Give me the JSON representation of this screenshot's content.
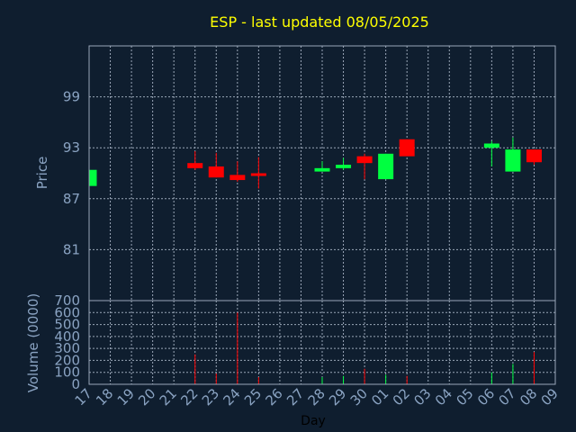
{
  "chart_data": {
    "type": "candlestick",
    "title": "ESP - last updated 08/05/2025",
    "xlabel": "Day",
    "price_panel": {
      "ylabel": "Price",
      "yticks": [
        "81",
        "87",
        "93",
        "99"
      ],
      "ylim": [
        75,
        105
      ]
    },
    "volume_panel": {
      "ylabel": "Volume (0000)",
      "yticks": [
        "0",
        "100",
        "200",
        "300",
        "400",
        "500",
        "600",
        "700"
      ],
      "ylim": [
        0,
        700
      ]
    },
    "days": [
      "17",
      "18",
      "19",
      "20",
      "21",
      "22",
      "23",
      "24",
      "25",
      "26",
      "27",
      "28",
      "29",
      "30",
      "01",
      "02",
      "03",
      "04",
      "05",
      "06",
      "07",
      "08",
      "09"
    ],
    "candles": [
      {
        "day": "17",
        "open": 88.5,
        "close": 90.4,
        "high": 90.4,
        "low": 88.5,
        "volume": 0
      },
      {
        "day": "22",
        "open": 91.2,
        "close": 90.6,
        "high": 92.6,
        "low": 90.4,
        "volume": 250
      },
      {
        "day": "23",
        "open": 90.8,
        "close": 89.5,
        "high": 92.4,
        "low": 89.5,
        "volume": 90
      },
      {
        "day": "24",
        "open": 89.8,
        "close": 89.2,
        "high": 91.4,
        "low": 89.0,
        "volume": 600
      },
      {
        "day": "25",
        "open": 90.0,
        "close": 89.8,
        "high": 91.9,
        "low": 88.2,
        "volume": 60
      },
      {
        "day": "28",
        "open": 90.2,
        "close": 90.6,
        "high": 91.4,
        "low": 90.2,
        "volume": 60
      },
      {
        "day": "29",
        "open": 90.6,
        "close": 91.0,
        "high": 91.8,
        "low": 90.4,
        "volume": 70
      },
      {
        "day": "30",
        "open": 92.0,
        "close": 91.2,
        "high": 92.3,
        "low": 89.3,
        "volume": 130
      },
      {
        "day": "01",
        "open": 89.3,
        "close": 92.3,
        "high": 92.3,
        "low": 89.3,
        "volume": 80
      },
      {
        "day": "02",
        "open": 94.0,
        "close": 92.0,
        "high": 94.0,
        "low": 92.0,
        "volume": 70
      },
      {
        "day": "06",
        "open": 93.0,
        "close": 93.5,
        "high": 93.8,
        "low": 90.8,
        "volume": 100
      },
      {
        "day": "07",
        "open": 90.2,
        "close": 92.8,
        "high": 94.2,
        "low": 90.2,
        "volume": 170
      },
      {
        "day": "08",
        "open": 92.8,
        "close": 91.3,
        "high": 92.8,
        "low": 91.0,
        "volume": 270
      }
    ],
    "colors": {
      "background": "#0f1e2f",
      "up": "#00ff40",
      "down": "#ff0000",
      "grid": "#9aa7b8",
      "axis_text": "#8aa3c2",
      "title": "#ffff00"
    }
  }
}
